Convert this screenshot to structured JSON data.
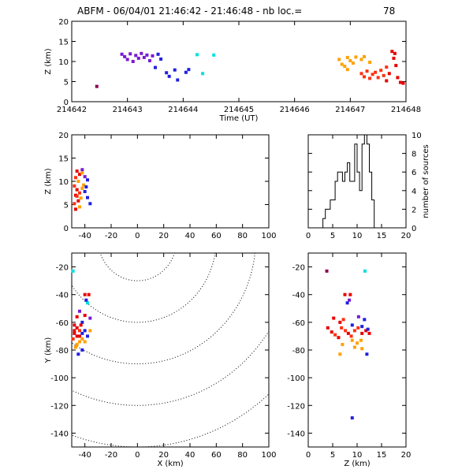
{
  "title_left": "ABFM - 06/04/01 21:46:42 - 21:46:48 - nb loc.=",
  "title_count": "78",
  "colors": {
    "purple": "#5a1a8c",
    "violet": "#7a1ad0",
    "blue": "#2020e0",
    "cyan": "#00e0e0",
    "orange": "#ffa000",
    "redorange": "#ff3010",
    "red": "#e80000",
    "darkred": "#8b0050",
    "axes": "#000000"
  },
  "chart_data": [
    {
      "id": "time-height",
      "type": "scatter",
      "xlabel": "Time (UT)",
      "ylabel": "Z (km)",
      "xlim": [
        214642,
        214648
      ],
      "ylim": [
        0,
        20
      ],
      "xticks": [
        "214642",
        "214643",
        "214644",
        "214645",
        "214646",
        "214647",
        "214648"
      ],
      "yticks": [
        "0",
        "5",
        "10",
        "15",
        "20"
      ],
      "points": [
        {
          "t": 214642.45,
          "z": 3.8,
          "c": "darkred"
        },
        {
          "t": 214642.9,
          "z": 11.8,
          "c": "violet"
        },
        {
          "t": 214642.95,
          "z": 11.2,
          "c": "violet"
        },
        {
          "t": 214643.0,
          "z": 10.5,
          "c": "violet"
        },
        {
          "t": 214643.05,
          "z": 11.9,
          "c": "violet"
        },
        {
          "t": 214643.1,
          "z": 10.0,
          "c": "violet"
        },
        {
          "t": 214643.15,
          "z": 11.5,
          "c": "violet"
        },
        {
          "t": 214643.2,
          "z": 10.8,
          "c": "violet"
        },
        {
          "t": 214643.25,
          "z": 12.0,
          "c": "violet"
        },
        {
          "t": 214643.3,
          "z": 11.0,
          "c": "violet"
        },
        {
          "t": 214643.35,
          "z": 11.6,
          "c": "violet"
        },
        {
          "t": 214643.4,
          "z": 10.2,
          "c": "violet"
        },
        {
          "t": 214643.45,
          "z": 11.4,
          "c": "violet"
        },
        {
          "t": 214643.5,
          "z": 8.5,
          "c": "blue"
        },
        {
          "t": 214643.55,
          "z": 11.8,
          "c": "blue"
        },
        {
          "t": 214643.6,
          "z": 10.6,
          "c": "blue"
        },
        {
          "t": 214643.7,
          "z": 7.2,
          "c": "blue"
        },
        {
          "t": 214643.75,
          "z": 6.3,
          "c": "blue"
        },
        {
          "t": 214643.85,
          "z": 7.9,
          "c": "blue"
        },
        {
          "t": 214643.9,
          "z": 5.4,
          "c": "blue"
        },
        {
          "t": 214644.05,
          "z": 7.3,
          "c": "blue"
        },
        {
          "t": 214644.1,
          "z": 8.0,
          "c": "blue"
        },
        {
          "t": 214644.25,
          "z": 11.7,
          "c": "cyan"
        },
        {
          "t": 214644.35,
          "z": 7.0,
          "c": "cyan"
        },
        {
          "t": 214644.55,
          "z": 11.6,
          "c": "cyan"
        },
        {
          "t": 214646.8,
          "z": 10.5,
          "c": "orange"
        },
        {
          "t": 214646.85,
          "z": 9.3,
          "c": "orange"
        },
        {
          "t": 214646.9,
          "z": 8.8,
          "c": "orange"
        },
        {
          "t": 214646.95,
          "z": 11.0,
          "c": "orange"
        },
        {
          "t": 214647.0,
          "z": 10.2,
          "c": "orange"
        },
        {
          "t": 214647.05,
          "z": 9.6,
          "c": "orange"
        },
        {
          "t": 214647.1,
          "z": 11.1,
          "c": "orange"
        },
        {
          "t": 214647.2,
          "z": 10.5,
          "c": "orange"
        },
        {
          "t": 214647.25,
          "z": 11.2,
          "c": "orange"
        },
        {
          "t": 214647.35,
          "z": 9.8,
          "c": "orange"
        },
        {
          "t": 214646.95,
          "z": 8.0,
          "c": "orange"
        },
        {
          "t": 214647.2,
          "z": 7.0,
          "c": "redorange"
        },
        {
          "t": 214647.25,
          "z": 6.2,
          "c": "redorange"
        },
        {
          "t": 214647.3,
          "z": 7.6,
          "c": "redorange"
        },
        {
          "t": 214647.35,
          "z": 5.8,
          "c": "redorange"
        },
        {
          "t": 214647.4,
          "z": 6.8,
          "c": "redorange"
        },
        {
          "t": 214647.45,
          "z": 7.3,
          "c": "redorange"
        },
        {
          "t": 214647.5,
          "z": 6.0,
          "c": "redorange"
        },
        {
          "t": 214647.55,
          "z": 7.8,
          "c": "redorange"
        },
        {
          "t": 214647.6,
          "z": 6.5,
          "c": "redorange"
        },
        {
          "t": 214647.65,
          "z": 8.6,
          "c": "redorange"
        },
        {
          "t": 214647.7,
          "z": 7.0,
          "c": "red"
        },
        {
          "t": 214647.75,
          "z": 12.5,
          "c": "red"
        },
        {
          "t": 214647.78,
          "z": 10.8,
          "c": "red"
        },
        {
          "t": 214647.8,
          "z": 12.0,
          "c": "red"
        },
        {
          "t": 214647.82,
          "z": 9.0,
          "c": "red"
        },
        {
          "t": 214647.85,
          "z": 6.0,
          "c": "red"
        },
        {
          "t": 214647.9,
          "z": 4.8,
          "c": "red"
        },
        {
          "t": 214647.95,
          "z": 4.6,
          "c": "red"
        },
        {
          "t": 214647.65,
          "z": 5.2,
          "c": "red"
        }
      ]
    },
    {
      "id": "x-height",
      "type": "scatter",
      "ylabel": "Z (km)",
      "xlim": [
        -50,
        100
      ],
      "ylim": [
        0,
        20
      ],
      "xticks": [
        "-40",
        "-20",
        "0",
        "20",
        "40",
        "60",
        "80",
        "100"
      ],
      "yticks": [
        "0",
        "5",
        "10",
        "15",
        "20"
      ],
      "points": [
        {
          "x": -46,
          "z": 12.2,
          "c": "red"
        },
        {
          "x": -44,
          "z": 11.5,
          "c": "red"
        },
        {
          "x": -47,
          "z": 10.8,
          "c": "redorange"
        },
        {
          "x": -45,
          "z": 10.0,
          "c": "orange"
        },
        {
          "x": -42,
          "z": 12.5,
          "c": "violet"
        },
        {
          "x": -40,
          "z": 11.0,
          "c": "violet"
        },
        {
          "x": -38,
          "z": 10.3,
          "c": "blue"
        },
        {
          "x": -41,
          "z": 9.2,
          "c": "orange"
        },
        {
          "x": -48,
          "z": 9.0,
          "c": "redorange"
        },
        {
          "x": -46,
          "z": 8.2,
          "c": "red"
        },
        {
          "x": -44,
          "z": 7.5,
          "c": "redorange"
        },
        {
          "x": -47,
          "z": 7.0,
          "c": "red"
        },
        {
          "x": -43,
          "z": 6.4,
          "c": "orange"
        },
        {
          "x": -45,
          "z": 5.8,
          "c": "red"
        },
        {
          "x": -48,
          "z": 5.2,
          "c": "redorange"
        },
        {
          "x": -40,
          "z": 7.8,
          "c": "blue"
        },
        {
          "x": -38,
          "z": 6.5,
          "c": "blue"
        },
        {
          "x": -36,
          "z": 5.2,
          "c": "blue"
        },
        {
          "x": -42,
          "z": 8.5,
          "c": "orange"
        },
        {
          "x": -47,
          "z": 4.0,
          "c": "red"
        },
        {
          "x": -44,
          "z": 4.5,
          "c": "orange"
        },
        {
          "x": -42,
          "z": 11.8,
          "c": "orange"
        },
        {
          "x": -39,
          "z": 8.8,
          "c": "blue"
        },
        {
          "x": -46,
          "z": 6.8,
          "c": "redorange"
        }
      ]
    },
    {
      "id": "height-histogram",
      "type": "histogram",
      "ylabel": "number of sources",
      "xlim": [
        0,
        20
      ],
      "ylim": [
        0,
        10
      ],
      "xticks": [
        "0",
        "5",
        "10",
        "15",
        "20"
      ],
      "yticks": [
        "0",
        "2",
        "4",
        "6",
        "8",
        "10"
      ],
      "bin_width": 0.5,
      "bin_start": 3.0,
      "counts": [
        1,
        2,
        2,
        3,
        3,
        5,
        6,
        6,
        5,
        6,
        7,
        5,
        5,
        9,
        6,
        4,
        9,
        10,
        9,
        6,
        3,
        0
      ]
    },
    {
      "id": "plan-view",
      "type": "scatter",
      "xlabel": "X (km)",
      "ylabel": "Y (km)",
      "xlim": [
        -50,
        100
      ],
      "ylim": [
        -150,
        -10
      ],
      "xticks": [
        "-40",
        "-20",
        "0",
        "20",
        "40",
        "60",
        "80",
        "100"
      ],
      "yticks": [
        "-140",
        "-120",
        "-100",
        "-80",
        "-60",
        "-40",
        "-20"
      ],
      "range_rings_km": [
        30,
        60,
        90,
        120,
        150
      ],
      "points": [
        {
          "x": -49,
          "y": -23,
          "c": "cyan"
        },
        {
          "x": -40,
          "y": -40,
          "c": "red"
        },
        {
          "x": -37,
          "y": -40,
          "c": "red"
        },
        {
          "x": -38,
          "y": -46,
          "c": "cyan"
        },
        {
          "x": -39,
          "y": -44,
          "c": "blue"
        },
        {
          "x": -46,
          "y": -56,
          "c": "red"
        },
        {
          "x": -44,
          "y": -52,
          "c": "violet"
        },
        {
          "x": -40,
          "y": -55,
          "c": "red"
        },
        {
          "x": -36,
          "y": -57,
          "c": "violet"
        },
        {
          "x": -42,
          "y": -60,
          "c": "blue"
        },
        {
          "x": -48,
          "y": -62,
          "c": "red"
        },
        {
          "x": -46,
          "y": -64,
          "c": "red"
        },
        {
          "x": -44,
          "y": -66,
          "c": "redorange"
        },
        {
          "x": -48,
          "y": -68,
          "c": "red"
        },
        {
          "x": -46,
          "y": -70,
          "c": "red"
        },
        {
          "x": -49,
          "y": -72,
          "c": "redorange"
        },
        {
          "x": -44,
          "y": -70,
          "c": "red"
        },
        {
          "x": -42,
          "y": -68,
          "c": "blue"
        },
        {
          "x": -40,
          "y": -66,
          "c": "blue"
        },
        {
          "x": -42,
          "y": -72,
          "c": "orange"
        },
        {
          "x": -44,
          "y": -74,
          "c": "orange"
        },
        {
          "x": -46,
          "y": -76,
          "c": "orange"
        },
        {
          "x": -40,
          "y": -74,
          "c": "orange"
        },
        {
          "x": -47,
          "y": -78,
          "c": "orange"
        },
        {
          "x": -38,
          "y": -70,
          "c": "blue"
        },
        {
          "x": -36,
          "y": -66,
          "c": "orange"
        },
        {
          "x": -45,
          "y": -83,
          "c": "blue"
        },
        {
          "x": -42,
          "y": -80,
          "c": "blue"
        },
        {
          "x": -48,
          "y": -66,
          "c": "red"
        },
        {
          "x": -43,
          "y": -62,
          "c": "red"
        }
      ]
    },
    {
      "id": "z-y-view",
      "type": "scatter",
      "xlabel": "Z (km)",
      "xlim": [
        0,
        20
      ],
      "ylim": [
        -150,
        -10
      ],
      "xticks": [
        "0",
        "5",
        "10",
        "15",
        "20"
      ],
      "yticks": [
        "-140",
        "-120",
        "-100",
        "-80",
        "-60",
        "-40",
        "-20"
      ],
      "points": [
        {
          "z": 3.8,
          "y": -23,
          "c": "darkred"
        },
        {
          "z": 11.6,
          "y": -23,
          "c": "cyan"
        },
        {
          "z": 7.5,
          "y": -40,
          "c": "red"
        },
        {
          "z": 8.6,
          "y": -40,
          "c": "red"
        },
        {
          "z": 8.0,
          "y": -46,
          "c": "blue"
        },
        {
          "z": 8.4,
          "y": -44,
          "c": "violet"
        },
        {
          "z": 5.2,
          "y": -57,
          "c": "red"
        },
        {
          "z": 6.5,
          "y": -60,
          "c": "red"
        },
        {
          "z": 7.2,
          "y": -58,
          "c": "redorange"
        },
        {
          "z": 10.3,
          "y": -56,
          "c": "violet"
        },
        {
          "z": 11.5,
          "y": -58,
          "c": "blue"
        },
        {
          "z": 11.0,
          "y": -63,
          "c": "blue"
        },
        {
          "z": 4.0,
          "y": -64,
          "c": "red"
        },
        {
          "z": 4.8,
          "y": -67,
          "c": "red"
        },
        {
          "z": 5.5,
          "y": -69,
          "c": "redorange"
        },
        {
          "z": 6.2,
          "y": -71,
          "c": "red"
        },
        {
          "z": 6.8,
          "y": -64,
          "c": "redorange"
        },
        {
          "z": 7.6,
          "y": -66,
          "c": "redorange"
        },
        {
          "z": 8.2,
          "y": -68,
          "c": "red"
        },
        {
          "z": 8.8,
          "y": -70,
          "c": "redorange"
        },
        {
          "z": 9.5,
          "y": -66,
          "c": "redorange"
        },
        {
          "z": 10.2,
          "y": -64,
          "c": "redorange"
        },
        {
          "z": 11.0,
          "y": -68,
          "c": "red"
        },
        {
          "z": 11.8,
          "y": -66,
          "c": "red"
        },
        {
          "z": 12.5,
          "y": -68,
          "c": "red"
        },
        {
          "z": 9.0,
          "y": -73,
          "c": "orange"
        },
        {
          "z": 10.0,
          "y": -75,
          "c": "orange"
        },
        {
          "z": 10.8,
          "y": -73,
          "c": "orange"
        },
        {
          "z": 9.5,
          "y": -78,
          "c": "orange"
        },
        {
          "z": 11.0,
          "y": -79,
          "c": "orange"
        },
        {
          "z": 6.5,
          "y": -83,
          "c": "orange"
        },
        {
          "z": 12.0,
          "y": -83,
          "c": "blue"
        },
        {
          "z": 7.0,
          "y": -76,
          "c": "orange"
        },
        {
          "z": 12.2,
          "y": -65,
          "c": "blue"
        },
        {
          "z": 9.0,
          "y": -62,
          "c": "blue"
        },
        {
          "z": 9.0,
          "y": -129,
          "c": "blue"
        }
      ]
    }
  ]
}
